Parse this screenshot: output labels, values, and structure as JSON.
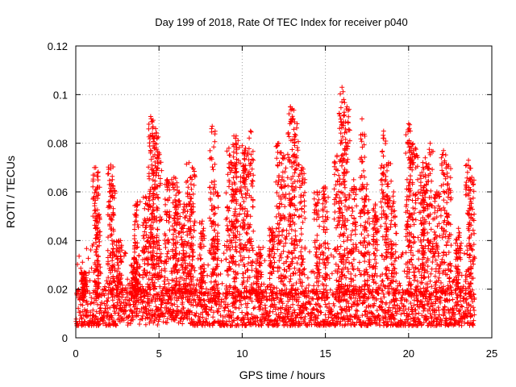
{
  "chart_data": {
    "type": "scatter",
    "title": "Day 199 of 2018, Rate Of TEC Index for receiver p040",
    "xlabel": "GPS time / hours",
    "ylabel": "ROTI / TECUs",
    "xlim": [
      0,
      25
    ],
    "ylim": [
      0,
      0.12
    ],
    "xticks": [
      0,
      5,
      10,
      15,
      20,
      25
    ],
    "xtick_labels": [
      "0",
      "5",
      "10",
      "15",
      "20",
      "25"
    ],
    "yticks": [
      0,
      0.02,
      0.04,
      0.06,
      0.08,
      0.1,
      0.12
    ],
    "ytick_labels": [
      "0",
      "0.02",
      "0.04",
      "0.06",
      "0.08",
      "0.1",
      "0.12"
    ],
    "grid": true,
    "marker": "+",
    "series": [
      {
        "name": "ROTI",
        "color": "#ff0000",
        "baseline_band": [
          0.005,
          0.02
        ],
        "spikes": [
          [
            0.5,
            0.027
          ],
          [
            1.2,
            0.07
          ],
          [
            1.3,
            0.062
          ],
          [
            2.1,
            0.071
          ],
          [
            2.2,
            0.065
          ],
          [
            2.6,
            0.04
          ],
          [
            3.5,
            0.033
          ],
          [
            3.7,
            0.056
          ],
          [
            4.2,
            0.058
          ],
          [
            4.5,
            0.091
          ],
          [
            4.6,
            0.084
          ],
          [
            4.8,
            0.086
          ],
          [
            5.0,
            0.076
          ],
          [
            5.5,
            0.065
          ],
          [
            5.9,
            0.066
          ],
          [
            6.1,
            0.062
          ],
          [
            6.5,
            0.055
          ],
          [
            6.8,
            0.072
          ],
          [
            7.0,
            0.07
          ],
          [
            7.6,
            0.048
          ],
          [
            8.2,
            0.087
          ],
          [
            8.4,
            0.06
          ],
          [
            9.2,
            0.078
          ],
          [
            9.5,
            0.083
          ],
          [
            9.6,
            0.082
          ],
          [
            10.0,
            0.079
          ],
          [
            10.2,
            0.078
          ],
          [
            10.5,
            0.085
          ],
          [
            11.0,
            0.035
          ],
          [
            11.8,
            0.045
          ],
          [
            12.2,
            0.08
          ],
          [
            12.5,
            0.075
          ],
          [
            12.9,
            0.095
          ],
          [
            13.0,
            0.094
          ],
          [
            13.3,
            0.088
          ],
          [
            13.6,
            0.07
          ],
          [
            14.5,
            0.06
          ],
          [
            15.0,
            0.062
          ],
          [
            15.7,
            0.075
          ],
          [
            16.0,
            0.103
          ],
          [
            16.1,
            0.098
          ],
          [
            16.3,
            0.095
          ],
          [
            16.7,
            0.065
          ],
          [
            17.2,
            0.09
          ],
          [
            17.5,
            0.063
          ],
          [
            18.0,
            0.055
          ],
          [
            18.5,
            0.085
          ],
          [
            18.8,
            0.072
          ],
          [
            19.1,
            0.06
          ],
          [
            20.0,
            0.088
          ],
          [
            20.1,
            0.085
          ],
          [
            20.4,
            0.078
          ],
          [
            20.8,
            0.068
          ],
          [
            21.0,
            0.074
          ],
          [
            21.3,
            0.08
          ],
          [
            21.7,
            0.06
          ],
          [
            22.1,
            0.077
          ],
          [
            22.4,
            0.071
          ],
          [
            23.0,
            0.045
          ],
          [
            23.6,
            0.073
          ],
          [
            23.8,
            0.066
          ]
        ]
      }
    ]
  }
}
